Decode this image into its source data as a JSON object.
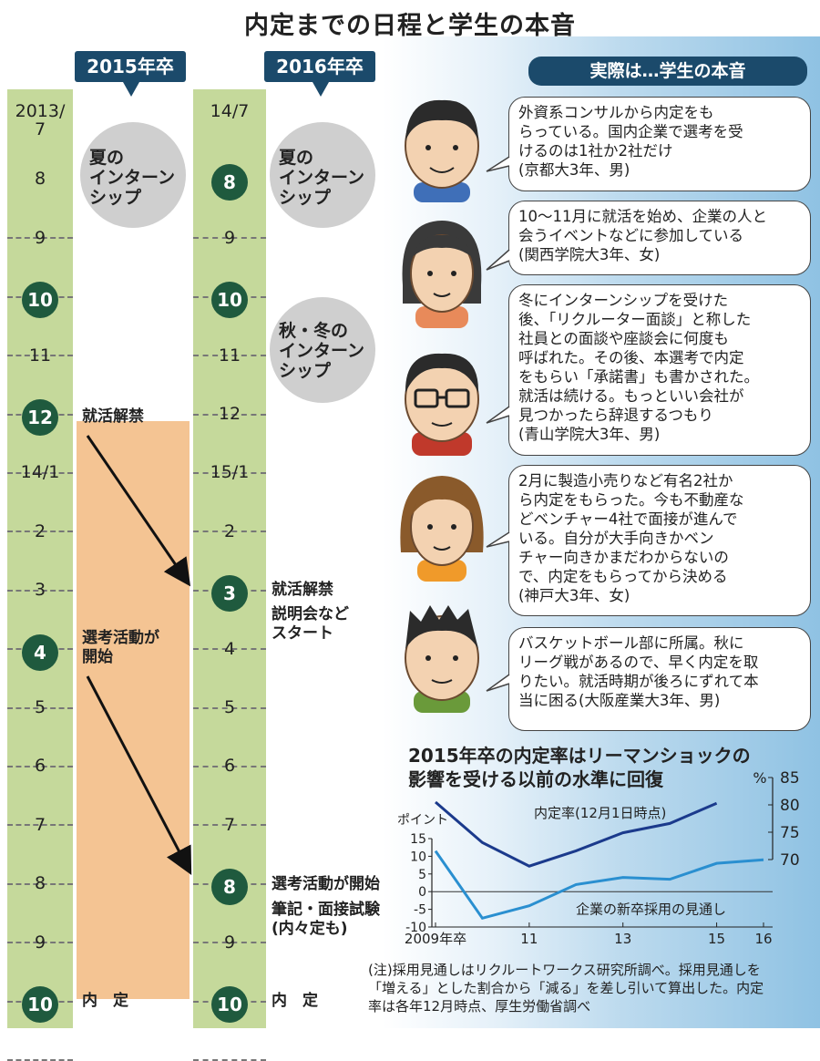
{
  "title": "内定までの日程と学生の本音",
  "left_header": "2015年卒",
  "mid_header": "2016年卒",
  "right_header": "実際は…学生の本音",
  "left_months": [
    "2013/\n7",
    "8",
    "9",
    "10",
    "11",
    "12",
    "14/1",
    "2",
    "3",
    "4",
    "5",
    "6",
    "7",
    "8",
    "9",
    "10"
  ],
  "mid_months": [
    "14/7",
    "8",
    "9",
    "10",
    "11",
    "12",
    "15/1",
    "2",
    "3",
    "4",
    "5",
    "6",
    "7",
    "8",
    "9",
    "10"
  ],
  "left_highlight": {
    "12": "12",
    "4": "4",
    "10": "10"
  },
  "mid_highlight": {
    "3": "3",
    "8": "8",
    "10": "10"
  },
  "summer_intern_left": "夏の\nインターン\nシップ",
  "summer_intern_mid": "夏の\nインターン\nシップ",
  "autumn_winter_intern": "秋・冬の\nインターン\nシップ",
  "left_events": {
    "kaikin": "就活解禁",
    "senko": "選考活動が\n開始",
    "naitei": "内　定"
  },
  "mid_events": {
    "kaikin": "就活解禁",
    "setsumei": "説明会など\nスタート",
    "senko": "選考活動が開始",
    "hikki": "筆記・面接試験\n(内々定も)",
    "naitei": "内　定"
  },
  "bubbles": [
    "外資系コンサルから内定をも\nらっている。国内企業で選考を受\nけるのは1社か2社だけ\n(京都大3年、男)",
    "10〜11月に就活を始め、企業の人と\n会うイベントなどに参加している\n(関西学院大3年、女)",
    "冬にインターンシップを受けた\n後、「リクルーター面談」と称した\n社員との面談や座談会に何度も\n呼ばれた。その後、本選考で内定\nをもらい「承諾書」も書かされた。\n就活は続ける。もっといい会社が\n見つかったら辞退するつもり\n(青山学院大3年、男)",
    "2月に製造小売りなど有名2社か\nら内定をもらった。今も不動産な\nどベンチャー4社で面接が進んで\nいる。自分が大手向きかベン\nチャー向きかまだわからないの\nで、内定をもらってから決める\n(神戸大3年、女)",
    "バスケットボール部に所属。秋に\nリーグ戦があるので、早く内定を取\nりたい。就活時期が後ろにずれて本\n当に困る(大阪産業大3年、男)"
  ],
  "note": "(注)採用見通しはリクルートワークス研究所調べ。採用見通しを\n「増える」とした割合から「減る」を差し引いて算出した。内定\n率は各年12月時点、厚生労働省調べ",
  "chart_data": {
    "type": "line",
    "title": "2015年卒の内定率はリーマンショックの\n影響を受ける以前の水準に回復",
    "x": [
      2009,
      2010,
      2011,
      2012,
      2013,
      2014,
      2015,
      2016
    ],
    "xticks": [
      "2009年卒",
      "11",
      "13",
      "15",
      "16"
    ],
    "xtick_values": [
      2009,
      2011,
      2013,
      2015,
      2016
    ],
    "left_axis": {
      "label": "ポイント",
      "ylim": [
        -10,
        15
      ],
      "ticks": [
        15,
        10,
        5,
        0,
        -5,
        -10
      ]
    },
    "right_axis": {
      "label": "%",
      "ylim": [
        70,
        85
      ],
      "ticks": [
        85,
        80,
        75,
        70
      ]
    },
    "series": [
      {
        "name": "内定率(12月1日時点)",
        "axis": "right",
        "color": "#1b3a8c",
        "x": [
          2009,
          2010,
          2011,
          2012,
          2013,
          2014,
          2015
        ],
        "values": [
          80.5,
          73.1,
          68.8,
          71.6,
          74.9,
          76.6,
          80.3
        ]
      },
      {
        "name": "企業の新卒採用の見通し",
        "axis": "left",
        "color": "#2a8fd0",
        "x": [
          2009,
          2010,
          2011,
          2012,
          2013,
          2014,
          2015,
          2016
        ],
        "values": [
          11.5,
          -7.5,
          -4.0,
          2.0,
          4.0,
          3.5,
          8.0,
          9.0
        ]
      }
    ]
  }
}
